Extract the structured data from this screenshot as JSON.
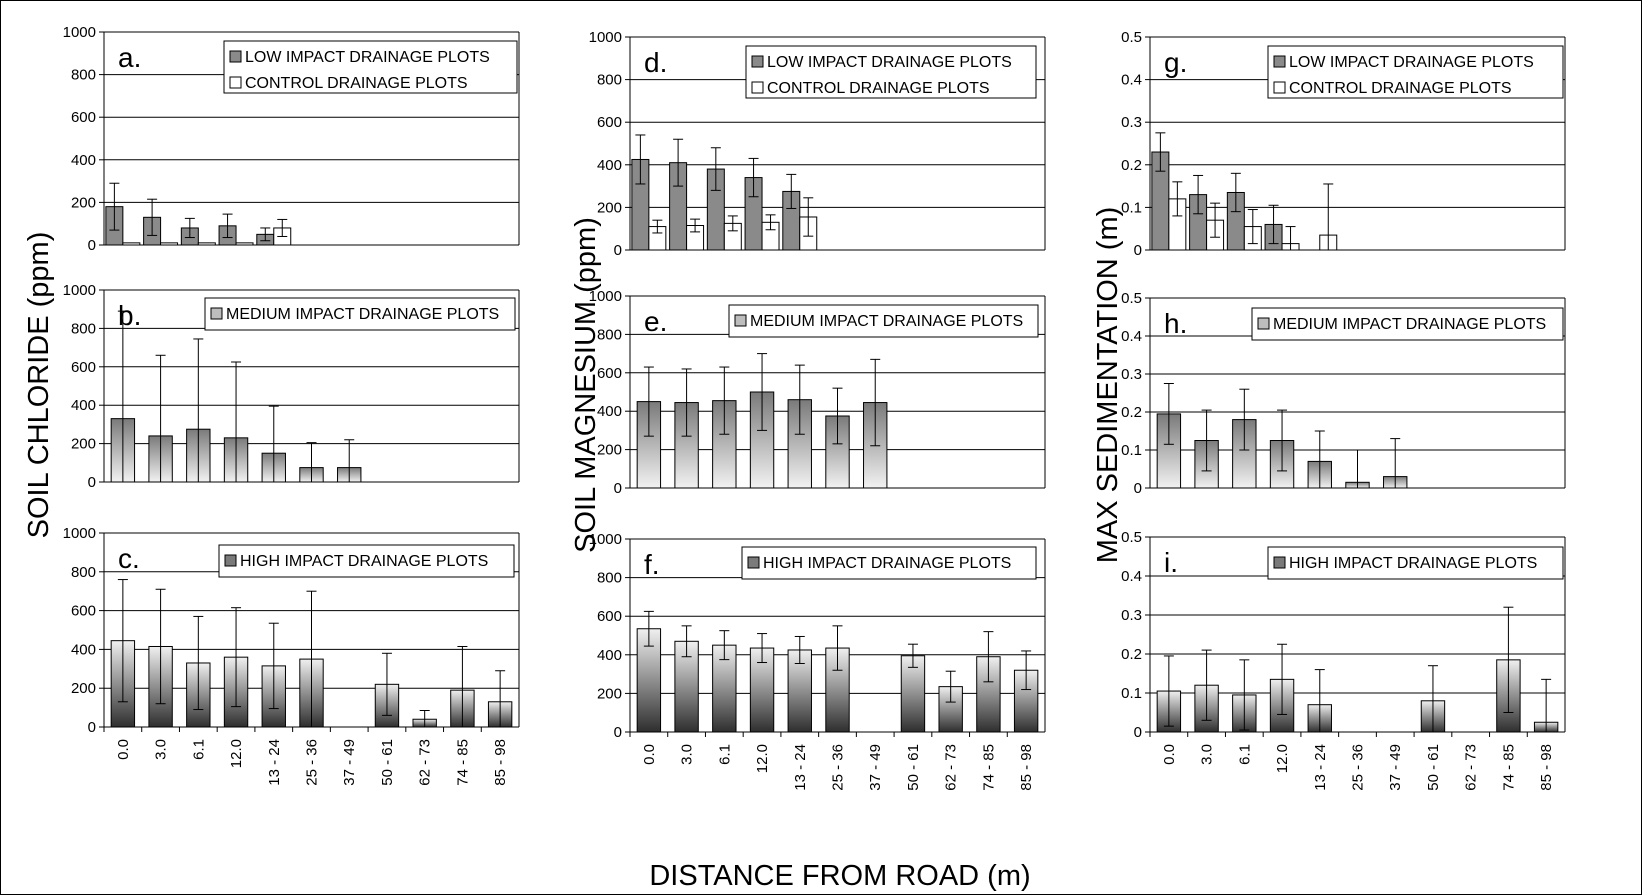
{
  "chart_data": {
    "type": "bar",
    "x_title": "DISTANCE FROM ROAD (m)",
    "categories": [
      "0.0",
      "3.0",
      "6.1",
      "12.0",
      "13 - 24",
      "25 - 36",
      "37 - 49",
      "50 - 61",
      "62 - 73",
      "74 - 85",
      "85 - 98"
    ],
    "columns": [
      {
        "ylabel": "SOIL CHLORIDE (ppm)",
        "ylim": [
          0,
          1000
        ],
        "yticks": [
          "0",
          "200",
          "400",
          "600",
          "800",
          "1000"
        ],
        "panels": [
          {
            "label": "a.",
            "show_x_ticks": false,
            "legend": [
              "LOW IMPACT DRAINAGE PLOTS",
              "CONTROL DRAINAGE PLOTS"
            ],
            "series": [
              {
                "name": "LOW IMPACT DRAINAGE PLOTS",
                "style": "dark",
                "values": [
                  180,
                  130,
                  80,
                  90,
                  50,
                  null,
                  null,
                  null,
                  null,
                  null,
                  null
                ],
                "err": [
                  110,
                  85,
                  45,
                  55,
                  30,
                  null,
                  null,
                  null,
                  null,
                  null,
                  null
                ]
              },
              {
                "name": "CONTROL DRAINAGE PLOTS",
                "style": "white",
                "values": [
                  10,
                  10,
                  10,
                  10,
                  80,
                  null,
                  null,
                  null,
                  null,
                  null,
                  null
                ],
                "err": [
                  0,
                  0,
                  0,
                  0,
                  40,
                  null,
                  null,
                  null,
                  null,
                  null,
                  null
                ]
              }
            ]
          },
          {
            "label": "b.",
            "show_x_ticks": false,
            "legend": [
              "MEDIUM IMPACT DRAINAGE PLOTS"
            ],
            "series": [
              {
                "name": "MEDIUM IMPACT DRAINAGE PLOTS",
                "style": "medium",
                "values": [
                  330,
                  240,
                  275,
                  230,
                  150,
                  75,
                  75,
                  null,
                  null,
                  null,
                  null
                ],
                "err": [
                  560,
                  420,
                  470,
                  395,
                  245,
                  130,
                  145,
                  null,
                  null,
                  null,
                  null
                ]
              }
            ]
          },
          {
            "label": "c.",
            "show_x_ticks": true,
            "legend": [
              "HIGH IMPACT DRAINAGE PLOTS"
            ],
            "series": [
              {
                "name": "HIGH IMPACT DRAINAGE PLOTS",
                "style": "high",
                "values": [
                  445,
                  415,
                  330,
                  360,
                  315,
                  350,
                  null,
                  220,
                  40,
                  190,
                  130
                ],
                "err": [
                  315,
                  295,
                  240,
                  255,
                  220,
                  350,
                  null,
                  160,
                  45,
                  225,
                  160
                ]
              }
            ]
          }
        ]
      },
      {
        "ylabel": "SOIL MAGNESIUM (ppm)",
        "ylim": [
          0,
          1000
        ],
        "yticks": [
          "0",
          "200",
          "400",
          "600",
          "800",
          "1000"
        ],
        "panels": [
          {
            "label": "d.",
            "show_x_ticks": false,
            "legend": [
              "LOW IMPACT DRAINAGE PLOTS",
              "CONTROL DRAINAGE PLOTS"
            ],
            "series": [
              {
                "name": "LOW IMPACT DRAINAGE PLOTS",
                "style": "dark",
                "values": [
                  425,
                  410,
                  380,
                  340,
                  275,
                  null,
                  null,
                  null,
                  null,
                  null,
                  null
                ],
                "err": [
                  115,
                  110,
                  100,
                  90,
                  80,
                  null,
                  null,
                  null,
                  null,
                  null,
                  null
                ]
              },
              {
                "name": "CONTROL DRAINAGE PLOTS",
                "style": "white",
                "values": [
                  110,
                  115,
                  125,
                  130,
                  155,
                  null,
                  null,
                  null,
                  null,
                  null,
                  null
                ],
                "err": [
                  30,
                  30,
                  35,
                  35,
                  90,
                  null,
                  null,
                  null,
                  null,
                  null,
                  null
                ]
              }
            ]
          },
          {
            "label": "e.",
            "show_x_ticks": false,
            "legend": [
              "MEDIUM IMPACT DRAINAGE PLOTS"
            ],
            "series": [
              {
                "name": "MEDIUM IMPACT DRAINAGE PLOTS",
                "style": "medium",
                "values": [
                  450,
                  445,
                  455,
                  500,
                  460,
                  375,
                  445,
                  null,
                  null,
                  null,
                  null
                ],
                "err": [
                  180,
                  175,
                  175,
                  200,
                  180,
                  145,
                  225,
                  null,
                  null,
                  null,
                  null
                ]
              }
            ]
          },
          {
            "label": "f.",
            "show_x_ticks": true,
            "legend": [
              "HIGH IMPACT DRAINAGE PLOTS"
            ],
            "series": [
              {
                "name": "HIGH IMPACT DRAINAGE PLOTS",
                "style": "high",
                "values": [
                  535,
                  470,
                  450,
                  435,
                  425,
                  435,
                  null,
                  395,
                  235,
                  390,
                  320
                ],
                "err": [
                  90,
                  80,
                  75,
                  75,
                  70,
                  115,
                  null,
                  60,
                  80,
                  130,
                  100
                ]
              }
            ]
          }
        ]
      },
      {
        "ylabel": "MAX SEDIMENTATION (m)",
        "ylim": [
          0,
          0.5
        ],
        "yticks": [
          "0",
          "0.1",
          "0.2",
          "0.3",
          "0.4",
          "0.5"
        ],
        "panels": [
          {
            "label": "g.",
            "show_x_ticks": false,
            "legend": [
              "LOW IMPACT DRAINAGE PLOTS",
              "CONTROL DRAINAGE PLOTS"
            ],
            "series": [
              {
                "name": "LOW IMPACT DRAINAGE PLOTS",
                "style": "dark",
                "values": [
                  0.23,
                  0.13,
                  0.135,
                  0.06,
                  0.0,
                  null,
                  null,
                  null,
                  null,
                  null,
                  null
                ],
                "err": [
                  0.045,
                  0.045,
                  0.045,
                  0.045,
                  0.0,
                  null,
                  null,
                  null,
                  null,
                  null,
                  null
                ]
              },
              {
                "name": "CONTROL DRAINAGE PLOTS",
                "style": "white",
                "values": [
                  0.12,
                  0.07,
                  0.055,
                  0.015,
                  0.035,
                  null,
                  null,
                  null,
                  null,
                  null,
                  null
                ],
                "err": [
                  0.04,
                  0.04,
                  0.04,
                  0.04,
                  0.12,
                  null,
                  null,
                  null,
                  null,
                  null,
                  null
                ]
              }
            ]
          },
          {
            "label": "h.",
            "show_x_ticks": false,
            "legend": [
              "MEDIUM IMPACT DRAINAGE PLOTS"
            ],
            "series": [
              {
                "name": "MEDIUM IMPACT DRAINAGE PLOTS",
                "style": "medium",
                "values": [
                  0.195,
                  0.125,
                  0.18,
                  0.125,
                  0.07,
                  0.015,
                  0.03,
                  null,
                  null,
                  null,
                  null
                ],
                "err": [
                  0.08,
                  0.08,
                  0.08,
                  0.08,
                  0.08,
                  0.085,
                  0.1,
                  null,
                  null,
                  null,
                  null
                ]
              }
            ]
          },
          {
            "label": "i.",
            "show_x_ticks": true,
            "legend": [
              "HIGH IMPACT DRAINAGE PLOTS"
            ],
            "series": [
              {
                "name": "HIGH IMPACT DRAINAGE PLOTS",
                "style": "high",
                "values": [
                  0.105,
                  0.12,
                  0.095,
                  0.135,
                  0.07,
                  0.0,
                  null,
                  0.08,
                  0.0,
                  0.185,
                  0.025
                ],
                "err": [
                  0.09,
                  0.09,
                  0.09,
                  0.09,
                  0.09,
                  0.0,
                  null,
                  0.09,
                  0.0,
                  0.135,
                  0.11
                ]
              }
            ]
          }
        ]
      }
    ]
  }
}
